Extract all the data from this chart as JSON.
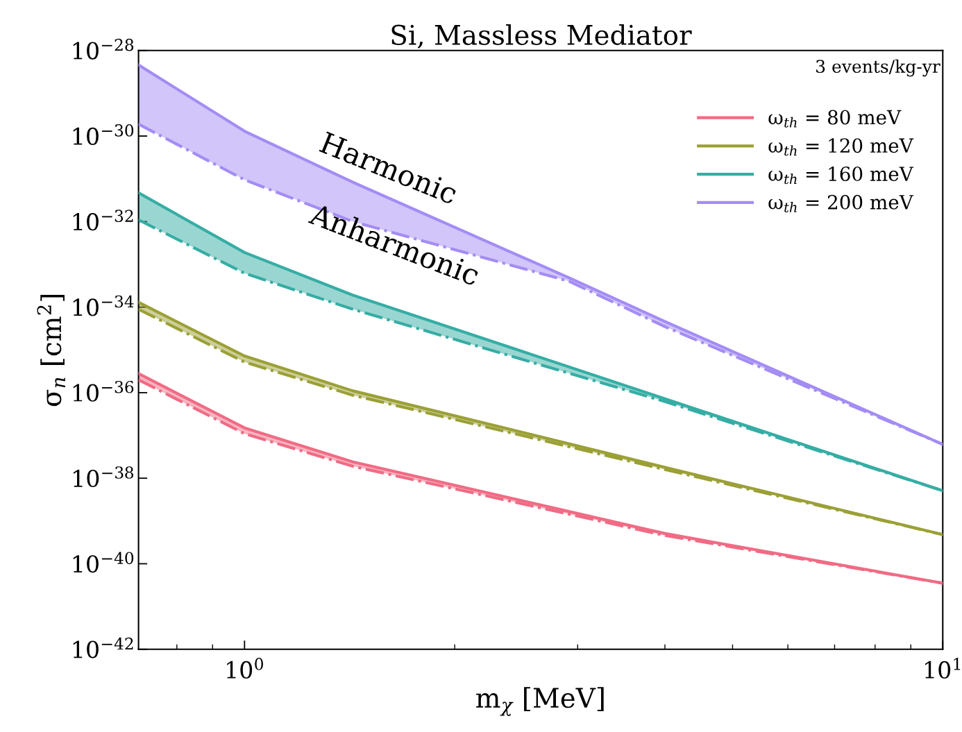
{
  "chart_data": {
    "type": "line",
    "title": "Si, Massless Mediator",
    "xlabel": "m$_{χ}$ [MeV]",
    "ylabel": "σ$_{n}$ [cm$^{2}$]",
    "log": "xy",
    "xlim": [
      0.705,
      10
    ],
    "xticks": [
      {
        "value": 1,
        "label": "10$^{0}$"
      },
      {
        "value": 10,
        "label": "10$^{1}$"
      }
    ],
    "ylim": [
      1e-42,
      1e-28
    ],
    "yticks": [
      {
        "value": 1e-42,
        "label": "10$^{−42}$"
      },
      {
        "value": 1e-40,
        "label": "10$^{−40}$"
      },
      {
        "value": 1e-38,
        "label": "10$^{−38}$"
      },
      {
        "value": 1e-36,
        "label": "10$^{−36}$"
      },
      {
        "value": 1e-34,
        "label": "10$^{−34}$"
      },
      {
        "value": 1e-32,
        "label": "10$^{−32}$"
      },
      {
        "value": 1e-30,
        "label": "10$^{−30}$"
      },
      {
        "value": 1e-28,
        "label": "10$^{−28}$"
      }
    ],
    "grid": false,
    "legend": "top right",
    "marker": "none",
    "series": [
      {
        "name": "ω$_{th}$ = 80 meV",
        "color": "#f06b84",
        "line_style": "solid",
        "x": [
          0.705,
          1,
          1.43,
          4,
          10
        ],
        "values": [
          2.8e-36,
          1.5e-37,
          2.4e-38,
          5.1e-40,
          3.5e-41
        ],
        "lower": [
          2e-36,
          1.1e-37,
          1.9e-38,
          4.6e-40,
          3.5e-41
        ],
        "upper": [
          2.8e-36,
          1.5e-37,
          2.4e-38,
          5.1e-40,
          3.5e-41
        ]
      },
      {
        "name": "ω$_{th}$ = 120 meV",
        "color": "#9ba036",
        "line_style": "solid",
        "x": [
          0.705,
          1,
          1.43,
          4,
          10
        ],
        "values": [
          1.3e-34,
          7.2e-36,
          1.1e-36,
          1.8e-38,
          4.8e-40
        ],
        "lower": [
          8.9e-35,
          5.2e-36,
          8.7e-37,
          1.6e-38,
          4.8e-40
        ],
        "upper": [
          1.3e-34,
          7.2e-36,
          1.1e-36,
          1.8e-38,
          4.8e-40
        ]
      },
      {
        "name": "ω$_{th}$ = 160 meV",
        "color": "#36ada4",
        "line_style": "solid",
        "x": [
          0.705,
          1,
          1.43,
          4,
          10
        ],
        "values": [
          4.7e-32,
          1.9e-33,
          1.9e-34,
          7.2e-37,
          5.1e-39
        ],
        "lower": [
          1.1e-32,
          6.2e-34,
          8.9e-35,
          6.2e-37,
          5.1e-39
        ],
        "upper": [
          4.7e-32,
          1.9e-33,
          1.9e-34,
          7.2e-37,
          5.1e-39
        ]
      },
      {
        "name": "ω$_{th}$ = 200 meV",
        "color": "#a48cf4",
        "line_style": "solid",
        "x": [
          0.705,
          1,
          1.43,
          2.92,
          4,
          10
        ],
        "values": [
          4.6e-29,
          1.3e-30,
          8.3e-32,
          4.8e-34,
          4.6e-35,
          6.2e-38
        ],
        "lower": [
          1.9e-30,
          9.5e-32,
          1e-32,
          4e-34,
          3.5e-35,
          6.2e-38
        ],
        "upper": [
          4.6e-29,
          1.3e-30,
          8.3e-32,
          4.8e-34,
          4.6e-35,
          6.2e-38
        ]
      },
      {
        "color": "#f06b84",
        "line_style": "dashdot",
        "x": [
          0.705,
          1,
          1.43,
          4,
          10
        ],
        "values": [
          2e-36,
          1.1e-37,
          1.9e-38,
          4.6e-40,
          3.5e-41
        ]
      },
      {
        "color": "#9ba036",
        "line_style": "dashdot",
        "x": [
          0.705,
          1,
          1.43,
          4,
          10
        ],
        "values": [
          8.9e-35,
          5.2e-36,
          8.7e-37,
          1.6e-38,
          4.8e-40
        ]
      },
      {
        "color": "#36ada4",
        "line_style": "dashdot",
        "x": [
          0.705,
          1,
          1.43,
          4,
          10
        ],
        "values": [
          1.1e-32,
          6.2e-34,
          8.9e-35,
          6.2e-37,
          5.1e-39
        ]
      },
      {
        "color": "#a48cf4",
        "line_style": "dashdot",
        "x": [
          0.705,
          1,
          1.43,
          2.92,
          4,
          10
        ],
        "values": [
          1.9e-30,
          9.5e-32,
          1e-32,
          4e-34,
          3.5e-35,
          6.2e-38
        ]
      }
    ],
    "annotations": [
      "3 events/kg-yr",
      "Harmonic",
      "Anharmonic"
    ]
  }
}
